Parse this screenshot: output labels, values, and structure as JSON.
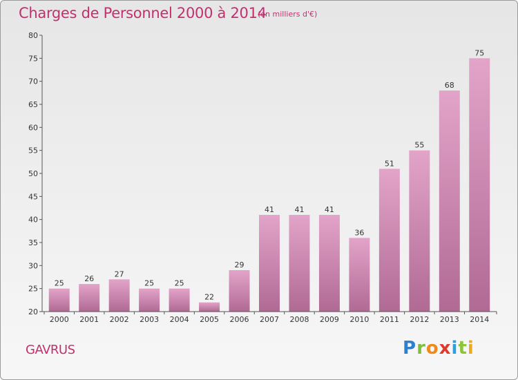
{
  "chart_data": {
    "type": "bar",
    "title": "Charges de Personnel 2000 à 2014",
    "subtitle": "(en milliers d'€)",
    "categories": [
      "2000",
      "2001",
      "2002",
      "2003",
      "2004",
      "2005",
      "2006",
      "2007",
      "2008",
      "2009",
      "2010",
      "2011",
      "2012",
      "2013",
      "2014"
    ],
    "values": [
      25,
      26,
      27,
      25,
      25,
      22,
      29,
      41,
      41,
      41,
      36,
      51,
      55,
      68,
      75
    ],
    "ylim": [
      20,
      80
    ],
    "yticks": [
      20,
      25,
      30,
      35,
      40,
      45,
      50,
      55,
      60,
      65,
      70,
      75,
      80
    ],
    "xlabel": "",
    "ylabel": "",
    "grid": false,
    "data_labels": true,
    "bar_color_top": "#e3a4c9",
    "bar_color_bottom": "#b06a94",
    "label_color": "#c2306e"
  },
  "commune": "GAVRUS",
  "logo": {
    "letters": [
      {
        "ch": "P",
        "color": "#2f7fcf"
      },
      {
        "ch": "r",
        "color": "#7bbf3a"
      },
      {
        "ch": "o",
        "color": "#f08a1c"
      },
      {
        "ch": "x",
        "color": "#e03a2a"
      },
      {
        "ch": "i",
        "color": "#2f9fd8"
      },
      {
        "ch": "t",
        "color": "#8cc43a"
      },
      {
        "ch": "i",
        "color": "#f0a91c"
      }
    ]
  }
}
